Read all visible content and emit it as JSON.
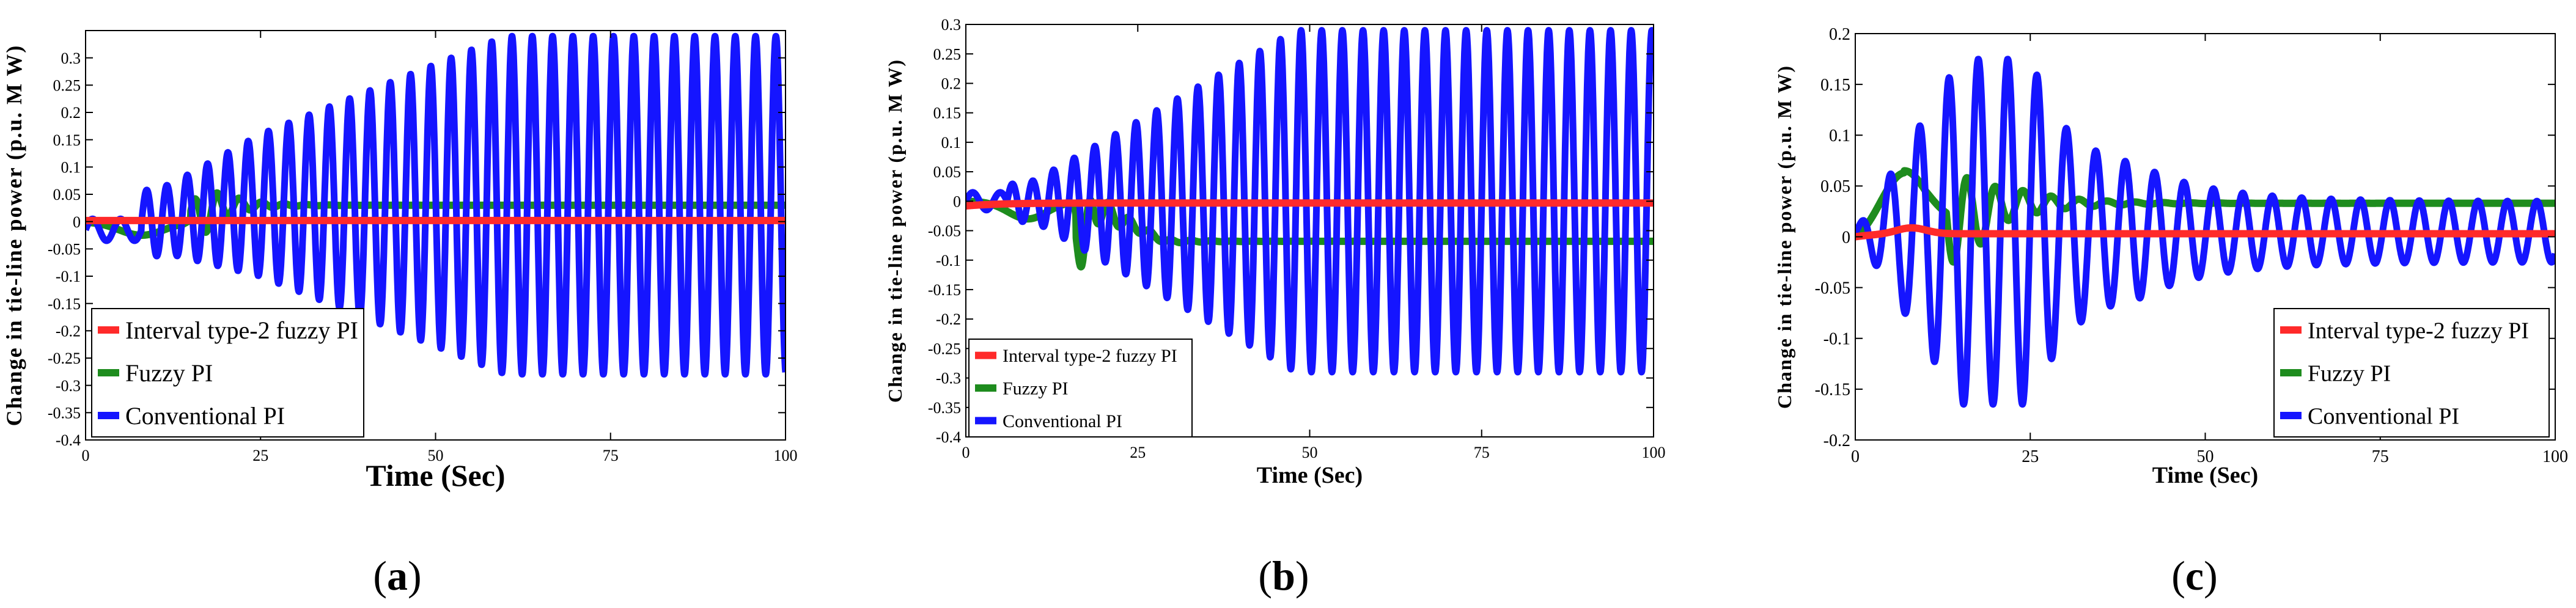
{
  "colors": {
    "itf2": "#ff2a2a",
    "fuzzy": "#1e8c1e",
    "conv": "#1515ff",
    "axis": "#000000"
  },
  "chart_data": [
    {
      "type": "line",
      "panel": "a",
      "caption": {
        "open": "(",
        "letter": "a",
        "close": ")"
      },
      "xlabel": "Time (Sec)",
      "ylabel": "Change in tie-line power (p.u. M W)",
      "xlim": [
        0,
        100
      ],
      "ylim": [
        -0.4,
        0.35
      ],
      "xticks": [
        0,
        25,
        50,
        75,
        100
      ],
      "yticks": [
        -0.4,
        -0.35,
        -0.3,
        -0.25,
        -0.2,
        -0.15,
        -0.1,
        -0.05,
        0,
        0.05,
        0.1,
        0.15,
        0.2,
        0.25,
        0.3
      ],
      "ytick_labels": [
        "-0.4",
        "-0.35",
        "-0.3",
        "-0.25",
        "-0.2",
        "-0.15",
        "-0.1",
        "-0.05",
        "0",
        "0.05",
        "0.1",
        "0.15",
        "0.2",
        "0.25",
        "0.3"
      ],
      "legend_position": "bottom-left",
      "series": [
        {
          "name": "Interval type-2 fuzzy PI",
          "color_key": "itf2",
          "kind": "settle",
          "final": 0.002,
          "dip": 0.0
        },
        {
          "name": "Fuzzy PI",
          "color_key": "fuzzy",
          "kind": "fuzzy_a",
          "final": 0.03
        },
        {
          "name": "Conventional PI",
          "color_key": "conv",
          "kind": "osc_a",
          "amp_max": 0.29,
          "period": 2.9
        }
      ]
    },
    {
      "type": "line",
      "panel": "b",
      "caption": {
        "open": "(",
        "letter": "b",
        "close": ")"
      },
      "xlabel": "Time (Sec)",
      "ylabel": "Change in tie-line power (p.u. M W)",
      "xlim": [
        0,
        100
      ],
      "ylim": [
        -0.4,
        0.3
      ],
      "xticks": [
        0,
        25,
        50,
        75,
        100
      ],
      "yticks": [
        -0.4,
        -0.35,
        -0.3,
        -0.25,
        -0.2,
        -0.15,
        -0.1,
        -0.05,
        0,
        0.05,
        0.1,
        0.15,
        0.2,
        0.25,
        0.3
      ],
      "ytick_labels": [
        "-0.4",
        "-0.35",
        "-0.3",
        "-0.25",
        "-0.2",
        "-0.15",
        "-0.1",
        "-0.05",
        "0",
        "0.05",
        "0.1",
        "0.15",
        "0.2",
        "0.25",
        "0.3"
      ],
      "legend_position": "bottom-left",
      "series": [
        {
          "name": "Interval type-2 fuzzy PI",
          "color_key": "itf2",
          "kind": "settle",
          "final": -0.003,
          "dip": -0.005
        },
        {
          "name": "Fuzzy PI",
          "color_key": "fuzzy",
          "kind": "fuzzy_b",
          "final": -0.068
        },
        {
          "name": "Conventional PI",
          "color_key": "conv",
          "kind": "osc_b",
          "amp_max": 0.29,
          "period": 3.0
        }
      ]
    },
    {
      "type": "line",
      "panel": "c",
      "caption": {
        "open": "(",
        "letter": "c",
        "close": ")"
      },
      "xlabel": "Time (Sec)",
      "ylabel": "Change in tie-line power (p.u. M W)",
      "xlim": [
        0,
        100
      ],
      "ylim": [
        -0.2,
        0.2
      ],
      "xticks": [
        0,
        25,
        50,
        75,
        100
      ],
      "yticks": [
        -0.2,
        -0.15,
        -0.1,
        -0.05,
        0,
        0.05,
        0.1,
        0.15,
        0.2
      ],
      "ytick_labels": [
        "-0.2",
        "-0.15",
        "-0.1",
        "-0.05",
        "0",
        "0.05",
        "0.1",
        "0.15",
        "0.2"
      ],
      "legend_position": "bottom-right",
      "series": [
        {
          "name": "Interval type-2 fuzzy PI",
          "color_key": "itf2",
          "kind": "settle_c",
          "final": 0.003
        },
        {
          "name": "Fuzzy PI",
          "color_key": "fuzzy",
          "kind": "fuzzy_c",
          "final": 0.033
        },
        {
          "name": "Conventional PI",
          "color_key": "conv",
          "kind": "osc_c",
          "amp_max": 0.17,
          "period": 4.2
        }
      ]
    }
  ]
}
